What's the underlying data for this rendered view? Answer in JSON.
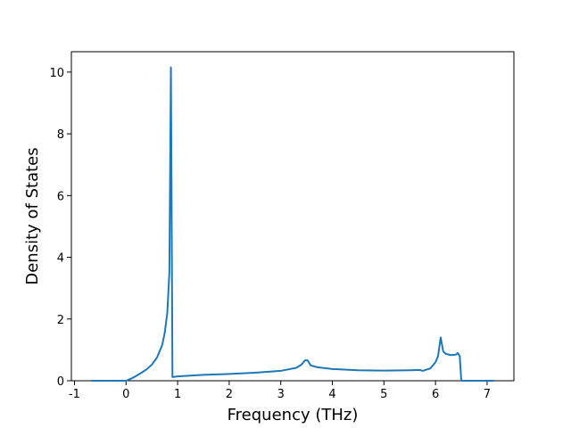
{
  "chart_data": {
    "type": "line",
    "xlabel": "Frequency (THz)",
    "ylabel": "Density of States",
    "x": [
      -0.67,
      0,
      0.1,
      0.2,
      0.3,
      0.4,
      0.5,
      0.6,
      0.7,
      0.75,
      0.8,
      0.84,
      0.87,
      0.9,
      1.0,
      1.5,
      2.0,
      2.5,
      3.0,
      3.3,
      3.4,
      3.47,
      3.52,
      3.58,
      3.7,
      4.0,
      4.5,
      5.0,
      5.5,
      5.7,
      5.75,
      5.9,
      6.0,
      6.05,
      6.1,
      6.15,
      6.2,
      6.3,
      6.4,
      6.43,
      6.47,
      6.5,
      7.13
    ],
    "series": [
      {
        "color": "#1f77b4",
        "values": [
          0,
          0,
          0.07,
          0.16,
          0.26,
          0.37,
          0.52,
          0.75,
          1.15,
          1.55,
          2.2,
          3.5,
          10.15,
          0.12,
          0.14,
          0.19,
          0.22,
          0.26,
          0.32,
          0.42,
          0.52,
          0.66,
          0.66,
          0.5,
          0.44,
          0.38,
          0.34,
          0.33,
          0.34,
          0.35,
          0.32,
          0.4,
          0.6,
          0.8,
          1.4,
          0.95,
          0.87,
          0.83,
          0.85,
          0.9,
          0.8,
          0,
          0
        ]
      }
    ],
    "xlim": [
      -1.06,
      7.52
    ],
    "ylim": [
      0,
      10.66
    ],
    "xticks": [
      -1,
      0,
      1,
      2,
      3,
      4,
      5,
      6,
      7
    ],
    "yticks": [
      0,
      2,
      4,
      6,
      8,
      10
    ]
  }
}
